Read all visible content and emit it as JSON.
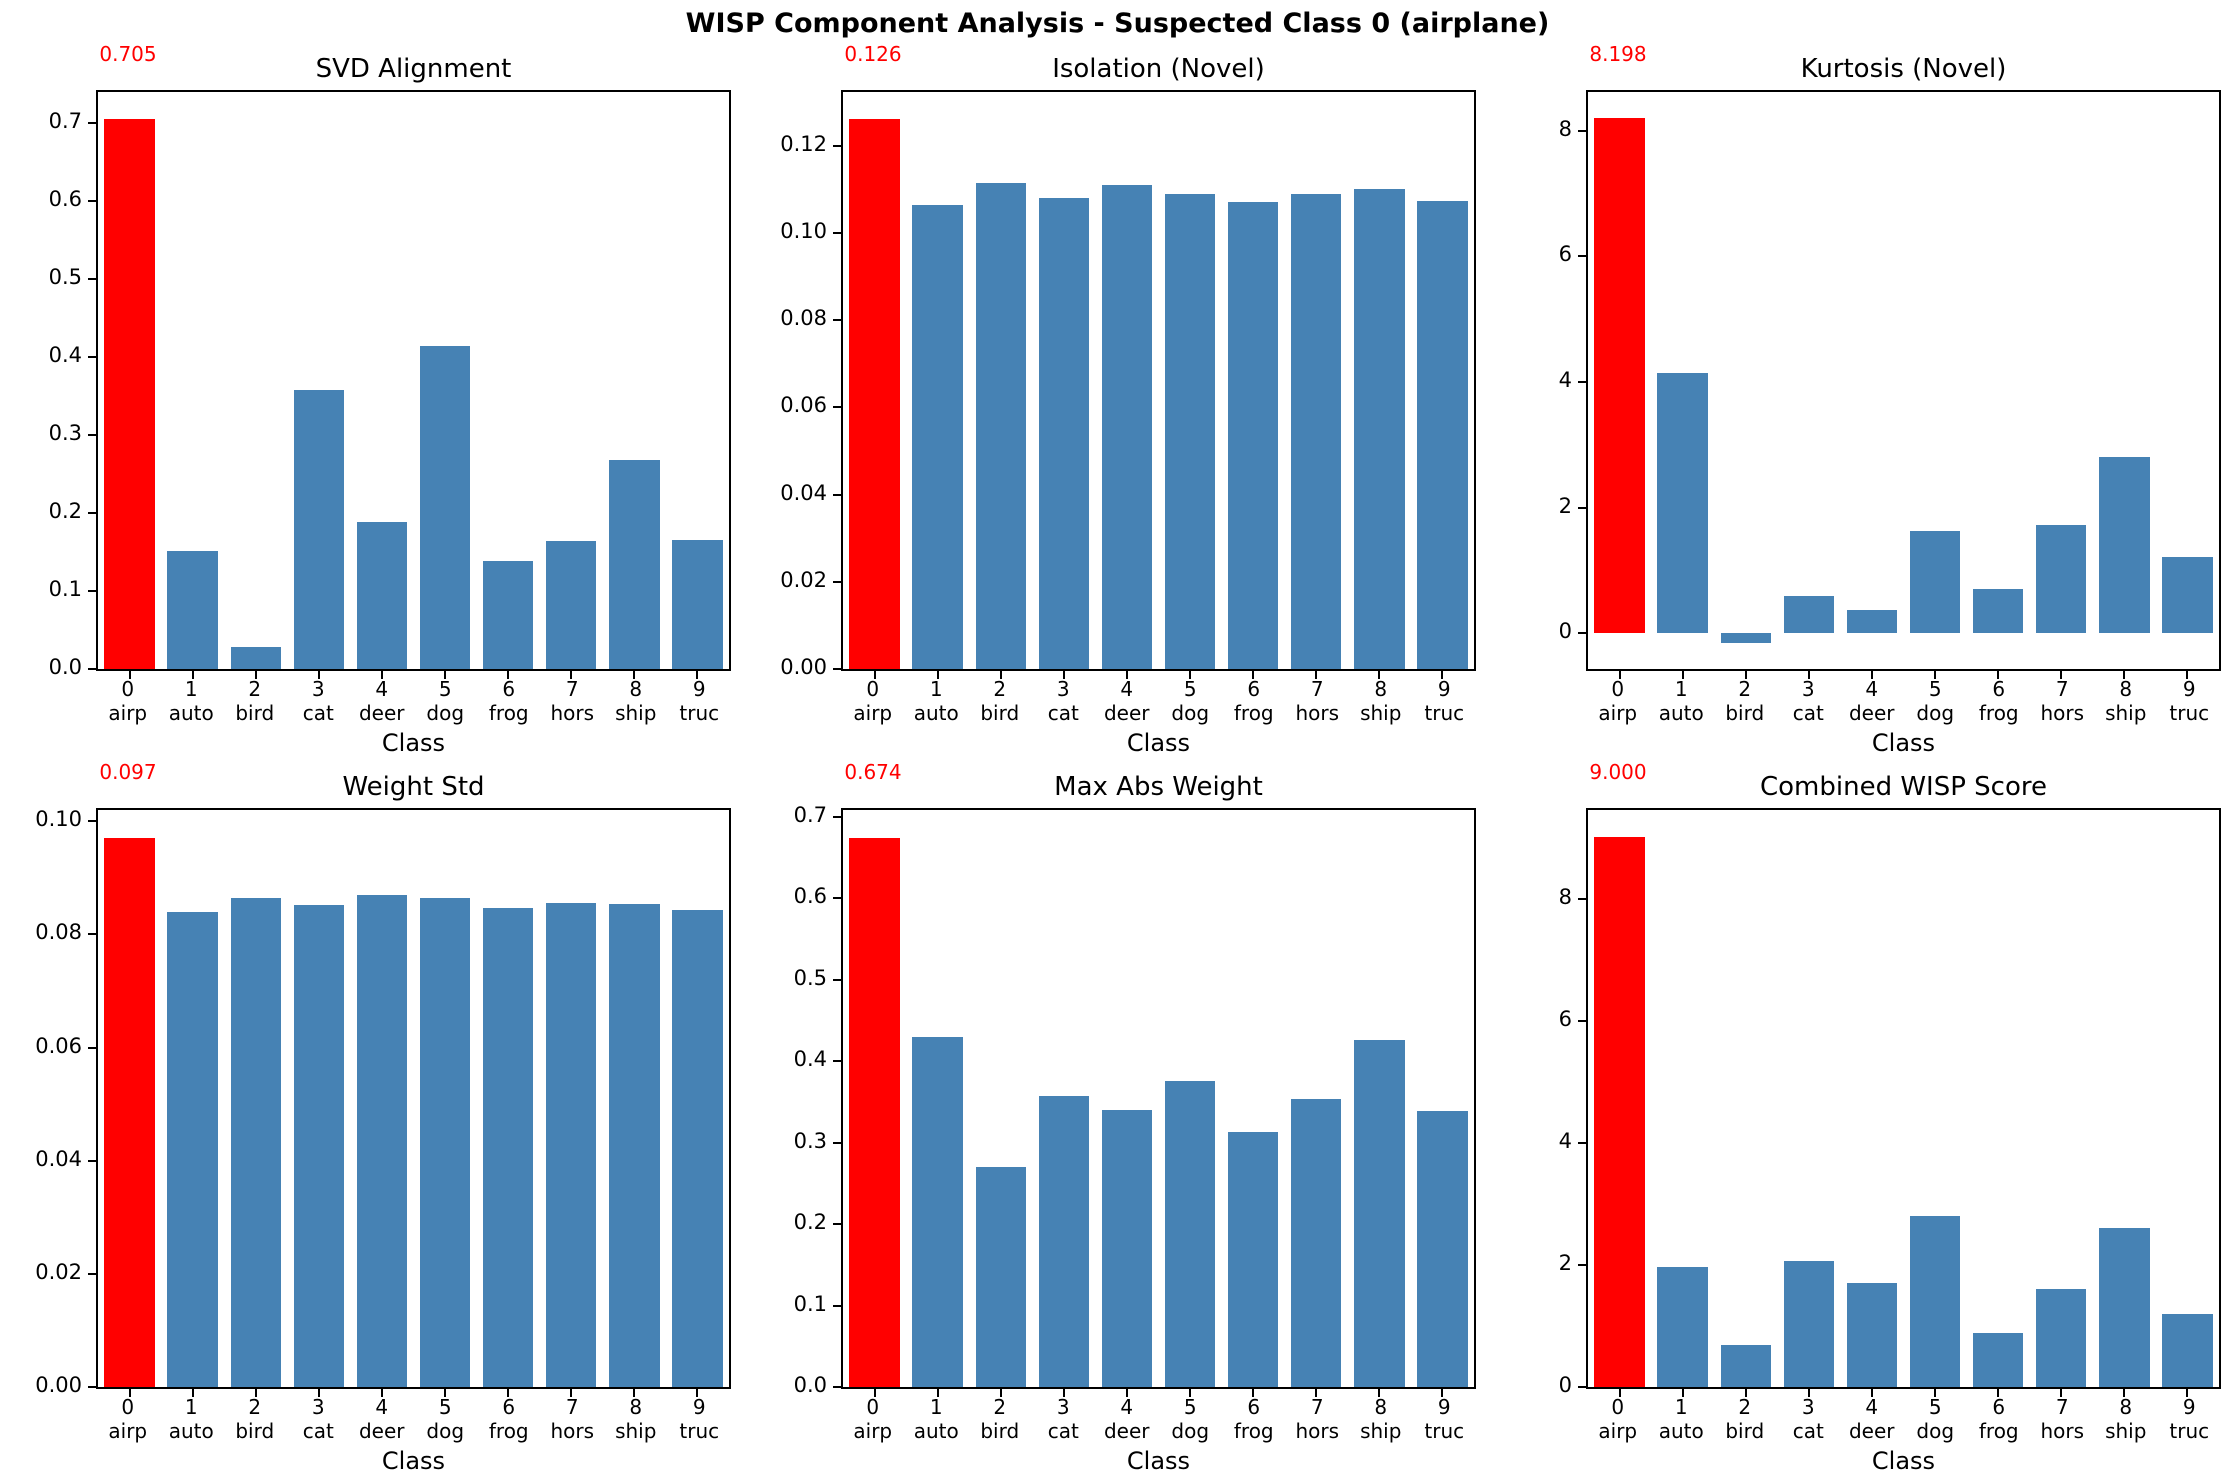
{
  "suptitle": "WISP Component Analysis - Suspected Class 0 (airplane)",
  "colors": {
    "highlight": "#ff0000",
    "bar": "#4682b4",
    "annotation": "#ff0000"
  },
  "categories": [
    {
      "id": "0",
      "name": "airp"
    },
    {
      "id": "1",
      "name": "auto"
    },
    {
      "id": "2",
      "name": "bird"
    },
    {
      "id": "3",
      "name": "cat"
    },
    {
      "id": "4",
      "name": "deer"
    },
    {
      "id": "5",
      "name": "dog"
    },
    {
      "id": "6",
      "name": "frog"
    },
    {
      "id": "7",
      "name": "hors"
    },
    {
      "id": "8",
      "name": "ship"
    },
    {
      "id": "9",
      "name": "truc"
    }
  ],
  "chart_data": [
    {
      "type": "bar",
      "title": "SVD Alignment",
      "xlabel": "Class",
      "annotation": "0.705",
      "highlight_index": 0,
      "ylim": [
        0,
        0.74
      ],
      "yticks": [
        0.0,
        0.1,
        0.2,
        0.3,
        0.4,
        0.5,
        0.6,
        0.7
      ],
      "ytick_labels": [
        "0.0",
        "0.1",
        "0.2",
        "0.3",
        "0.4",
        "0.5",
        "0.6",
        "0.7"
      ],
      "values": [
        0.705,
        0.151,
        0.028,
        0.358,
        0.188,
        0.414,
        0.138,
        0.164,
        0.268,
        0.165
      ]
    },
    {
      "type": "bar",
      "title": "Isolation (Novel)",
      "xlabel": "Class",
      "annotation": "0.126",
      "highlight_index": 0,
      "ylim": [
        0,
        0.1323
      ],
      "yticks": [
        0.0,
        0.02,
        0.04,
        0.06,
        0.08,
        0.1,
        0.12
      ],
      "ytick_labels": [
        "0.00",
        "0.02",
        "0.04",
        "0.06",
        "0.08",
        "0.10",
        "0.12"
      ],
      "values": [
        0.126,
        0.1065,
        0.1115,
        0.108,
        0.111,
        0.109,
        0.107,
        0.109,
        0.11,
        0.1072
      ]
    },
    {
      "type": "bar",
      "title": "Kurtosis (Novel)",
      "xlabel": "Class",
      "annotation": "8.198",
      "highlight_index": 0,
      "ylim": [
        -0.57,
        8.62
      ],
      "yticks": [
        0,
        2,
        4,
        6,
        8
      ],
      "ytick_labels": [
        "0",
        "2",
        "4",
        "6",
        "8"
      ],
      "values": [
        8.198,
        4.15,
        -0.15,
        0.6,
        0.37,
        1.63,
        0.7,
        1.72,
        2.8,
        1.22
      ]
    },
    {
      "type": "bar",
      "title": "Weight Std",
      "xlabel": "Class",
      "annotation": "0.097",
      "highlight_index": 0,
      "ylim": [
        0,
        0.102
      ],
      "yticks": [
        0.0,
        0.02,
        0.04,
        0.06,
        0.08,
        0.1
      ],
      "ytick_labels": [
        "0.00",
        "0.02",
        "0.04",
        "0.06",
        "0.08",
        "0.10"
      ],
      "values": [
        0.097,
        0.084,
        0.0864,
        0.0852,
        0.087,
        0.0864,
        0.0846,
        0.0855,
        0.0853,
        0.0843
      ]
    },
    {
      "type": "bar",
      "title": "Max Abs Weight",
      "xlabel": "Class",
      "annotation": "0.674",
      "highlight_index": 0,
      "ylim": [
        0,
        0.708
      ],
      "yticks": [
        0.0,
        0.1,
        0.2,
        0.3,
        0.4,
        0.5,
        0.6,
        0.7
      ],
      "ytick_labels": [
        "0.0",
        "0.1",
        "0.2",
        "0.3",
        "0.4",
        "0.5",
        "0.6",
        "0.7"
      ],
      "values": [
        0.674,
        0.429,
        0.27,
        0.357,
        0.34,
        0.375,
        0.313,
        0.353,
        0.426,
        0.339
      ]
    },
    {
      "type": "bar",
      "title": "Combined WISP Score",
      "xlabel": "Class",
      "annotation": "9.000",
      "highlight_index": 0,
      "ylim": [
        0,
        9.45
      ],
      "yticks": [
        0,
        2,
        4,
        6,
        8
      ],
      "ytick_labels": [
        "0",
        "2",
        "4",
        "6",
        "8"
      ],
      "values": [
        9.0,
        1.96,
        0.68,
        2.07,
        1.7,
        2.8,
        0.88,
        1.61,
        2.6,
        1.19
      ]
    }
  ]
}
